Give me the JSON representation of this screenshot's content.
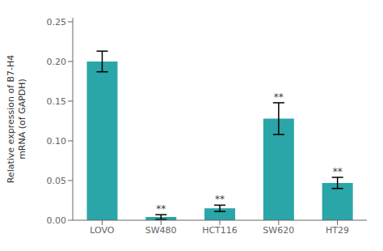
{
  "chart_data": {
    "type": "bar",
    "categories": [
      "LOVO",
      "SW480",
      "HCT116",
      "SW620",
      "HT29"
    ],
    "values": [
      0.2,
      0.004,
      0.015,
      0.128,
      0.047
    ],
    "errors": [
      0.013,
      0.003,
      0.004,
      0.02,
      0.007
    ],
    "color": "#2aa5a8",
    "annotations": [
      {
        "category": "SW480",
        "text": "**"
      },
      {
        "category": "HCT116",
        "text": "**"
      },
      {
        "category": "SW620",
        "text": "**"
      },
      {
        "category": "HT29",
        "text": "**"
      }
    ],
    "ylabel": "Relative expression of B7-H4\nmRNA (of GAPDH)",
    "ylim": [
      0,
      0.255
    ],
    "yticks": [
      {
        "value": 0,
        "label": "0.00"
      },
      0.05,
      {
        "value": 0.1,
        "label": "0.10"
      },
      0.15,
      {
        "value": 0.2,
        "label": "0.20"
      },
      0.25
    ],
    "grid": false
  }
}
